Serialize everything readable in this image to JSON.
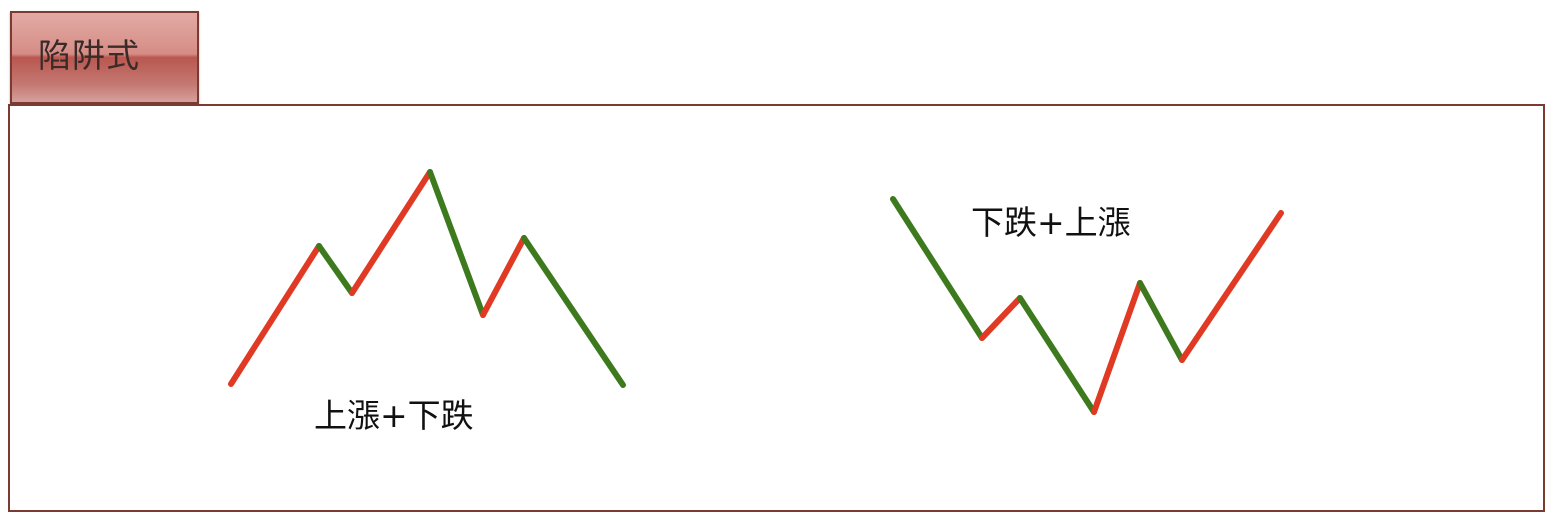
{
  "title": "陷阱式",
  "colors": {
    "up": "#e03a24",
    "down": "#3d7a1e",
    "border": "#7b3a32"
  },
  "patterns": [
    {
      "name": "peak",
      "label": "上漲+下跌",
      "segments": [
        "up",
        "down",
        "up",
        "down",
        "up",
        "down"
      ]
    },
    {
      "name": "valley",
      "label": "下跌+上漲",
      "segments": [
        "down",
        "up",
        "down",
        "up",
        "down",
        "up"
      ]
    }
  ]
}
